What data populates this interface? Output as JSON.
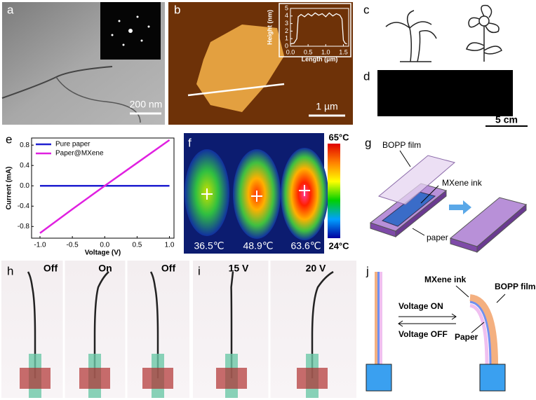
{
  "figure": {
    "panel_labels": [
      "a",
      "b",
      "c",
      "d",
      "e",
      "f",
      "g",
      "h",
      "i",
      "j"
    ],
    "a": {
      "scale_bar": "200 nm"
    },
    "b": {
      "scale_bar": "1 µm"
    },
    "d": {
      "scale_bar": "5 cm"
    },
    "f": {
      "temperatures": [
        "36.5℃",
        "48.9℃",
        "63.6℃"
      ],
      "colorbar_max": "65°C",
      "colorbar_min": "24°C"
    },
    "g": {
      "labels": [
        "BOPP film",
        "MXene ink",
        "paper"
      ]
    },
    "h": {
      "states": [
        "Off",
        "On",
        "Off"
      ]
    },
    "i": {
      "voltages": [
        "15 V",
        "20 V"
      ]
    },
    "j": {
      "labels": {
        "ink": "MXene ink",
        "film": "BOPP film",
        "on": "Voltage ON",
        "off": "Voltage OFF",
        "paper": "Paper"
      }
    }
  },
  "chart_data": [
    {
      "type": "line",
      "xlabel": "Length (µm)",
      "ylabel": "Height (nm)",
      "color": "#ffffff",
      "x": [
        0,
        0.1,
        0.18,
        0.22,
        0.3,
        0.4,
        0.5,
        0.6,
        0.7,
        0.8,
        0.9,
        1.0,
        1.1,
        1.2,
        1.3,
        1.4,
        1.46,
        1.5,
        1.55,
        1.6
      ],
      "values": [
        0.3,
        0.4,
        1.0,
        3.9,
        4.2,
        3.9,
        4.3,
        4.0,
        4.4,
        4.1,
        4.3,
        3.9,
        4.4,
        4.0,
        4.3,
        4.1,
        3.6,
        0.8,
        0.4,
        0.3
      ],
      "xlim": [
        0,
        1.65
      ],
      "ylim": [
        0,
        5
      ],
      "xticks": [
        {
          "value": 0,
          "label": "0.0"
        },
        {
          "value": 0.5,
          "label": "0.5"
        },
        {
          "value": 1,
          "label": "1.0"
        },
        {
          "value": 1.5,
          "label": "1.5"
        }
      ],
      "yticks": [
        0,
        1,
        2,
        3,
        4,
        5
      ]
    },
    {
      "type": "line",
      "xlabel": "Voltage (V)",
      "ylabel": "Current (mA)",
      "x": [
        -1,
        -0.5,
        0,
        0.5,
        1
      ],
      "series": [
        {
          "name": "Pure paper",
          "color": "#1f1fd0",
          "values": [
            0,
            0,
            0,
            0,
            0
          ]
        },
        {
          "name": "Paper@MXene",
          "color": "#e020e0",
          "values": [
            -0.93,
            -0.46,
            0,
            0.45,
            0.9
          ]
        }
      ],
      "xlim": [
        -1.13,
        1.07
      ],
      "ylim": [
        -1.03,
        0.94
      ],
      "xticks": [
        {
          "value": -1,
          "label": "-1.0"
        },
        {
          "value": -0.5,
          "label": "-0.5"
        },
        {
          "value": 0,
          "label": "0.0"
        },
        {
          "value": 0.5,
          "label": "0.5"
        },
        {
          "value": 1,
          "label": "1.0"
        }
      ],
      "yticks": [
        {
          "value": 0.8,
          "label": "0.8"
        },
        {
          "value": 0.4,
          "label": "0.4"
        },
        {
          "value": 0,
          "label": "0.0"
        },
        {
          "value": -0.4,
          "label": "-0.4"
        },
        {
          "value": -0.8,
          "label": "-0.8"
        }
      ],
      "legend": "upper left"
    }
  ]
}
